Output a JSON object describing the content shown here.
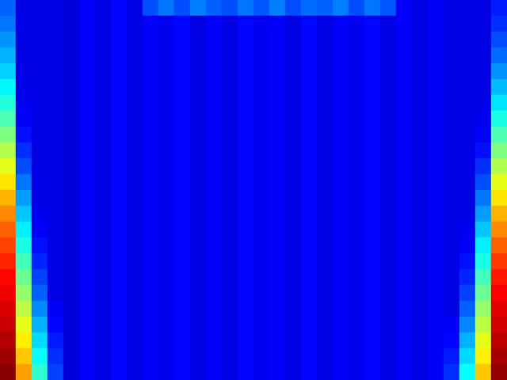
{
  "chart_data": {
    "type": "heatmap",
    "tick_labels": false,
    "color_range": [
      0,
      1
    ],
    "cells": [
      [
        0.22,
        0.1,
        0.1,
        0.1,
        0.09,
        0.12,
        0.1,
        0.13,
        0.1,
        0.2,
        0.24,
        0.2,
        0.25,
        0.22,
        0.2,
        0.24,
        0.21,
        0.25,
        0.2,
        0.23,
        0.22,
        0.25,
        0.2,
        0.24,
        0.21,
        0.12,
        0.1,
        0.12,
        0.1,
        0.1,
        0.1,
        0.15
      ],
      [
        0.24,
        0.1,
        0.1,
        0.1,
        0.09,
        0.12,
        0.1,
        0.13,
        0.1,
        0.12,
        0.11,
        0.13,
        0.1,
        0.12,
        0.1,
        0.13,
        0.11,
        0.12,
        0.1,
        0.13,
        0.1,
        0.12,
        0.11,
        0.13,
        0.1,
        0.12,
        0.1,
        0.12,
        0.1,
        0.1,
        0.1,
        0.17
      ],
      [
        0.27,
        0.1,
        0.1,
        0.1,
        0.09,
        0.12,
        0.1,
        0.13,
        0.1,
        0.12,
        0.11,
        0.13,
        0.1,
        0.12,
        0.1,
        0.13,
        0.11,
        0.12,
        0.1,
        0.13,
        0.1,
        0.12,
        0.11,
        0.13,
        0.1,
        0.12,
        0.1,
        0.12,
        0.1,
        0.1,
        0.1,
        0.2
      ],
      [
        0.3,
        0.1,
        0.1,
        0.1,
        0.09,
        0.12,
        0.1,
        0.13,
        0.1,
        0.12,
        0.11,
        0.13,
        0.1,
        0.12,
        0.1,
        0.13,
        0.11,
        0.12,
        0.1,
        0.13,
        0.1,
        0.12,
        0.11,
        0.13,
        0.1,
        0.12,
        0.1,
        0.12,
        0.1,
        0.1,
        0.1,
        0.23
      ],
      [
        0.33,
        0.1,
        0.1,
        0.1,
        0.09,
        0.12,
        0.1,
        0.13,
        0.1,
        0.12,
        0.11,
        0.13,
        0.1,
        0.12,
        0.1,
        0.13,
        0.11,
        0.12,
        0.1,
        0.13,
        0.1,
        0.12,
        0.11,
        0.13,
        0.1,
        0.12,
        0.1,
        0.12,
        0.1,
        0.1,
        0.1,
        0.27
      ],
      [
        0.37,
        0.1,
        0.1,
        0.1,
        0.09,
        0.12,
        0.1,
        0.13,
        0.1,
        0.12,
        0.11,
        0.13,
        0.1,
        0.12,
        0.1,
        0.13,
        0.11,
        0.12,
        0.1,
        0.13,
        0.1,
        0.12,
        0.11,
        0.13,
        0.1,
        0.12,
        0.1,
        0.12,
        0.1,
        0.1,
        0.1,
        0.31
      ],
      [
        0.41,
        0.11,
        0.1,
        0.1,
        0.09,
        0.12,
        0.1,
        0.13,
        0.1,
        0.12,
        0.11,
        0.13,
        0.1,
        0.12,
        0.1,
        0.13,
        0.11,
        0.12,
        0.1,
        0.13,
        0.1,
        0.12,
        0.11,
        0.13,
        0.1,
        0.12,
        0.1,
        0.12,
        0.1,
        0.1,
        0.1,
        0.35
      ],
      [
        0.45,
        0.12,
        0.1,
        0.1,
        0.09,
        0.12,
        0.1,
        0.13,
        0.1,
        0.12,
        0.11,
        0.13,
        0.1,
        0.12,
        0.1,
        0.13,
        0.11,
        0.12,
        0.1,
        0.13,
        0.1,
        0.12,
        0.11,
        0.13,
        0.1,
        0.12,
        0.1,
        0.12,
        0.1,
        0.1,
        0.11,
        0.4
      ],
      [
        0.5,
        0.14,
        0.1,
        0.1,
        0.09,
        0.12,
        0.1,
        0.13,
        0.1,
        0.12,
        0.11,
        0.13,
        0.1,
        0.12,
        0.1,
        0.13,
        0.11,
        0.12,
        0.1,
        0.13,
        0.1,
        0.12,
        0.11,
        0.13,
        0.1,
        0.12,
        0.1,
        0.12,
        0.1,
        0.1,
        0.12,
        0.45
      ],
      [
        0.55,
        0.17,
        0.1,
        0.1,
        0.09,
        0.12,
        0.1,
        0.13,
        0.1,
        0.12,
        0.11,
        0.13,
        0.1,
        0.12,
        0.1,
        0.13,
        0.11,
        0.12,
        0.1,
        0.13,
        0.1,
        0.12,
        0.11,
        0.13,
        0.1,
        0.12,
        0.1,
        0.12,
        0.1,
        0.1,
        0.14,
        0.5
      ],
      [
        0.6,
        0.2,
        0.1,
        0.1,
        0.09,
        0.12,
        0.1,
        0.13,
        0.1,
        0.12,
        0.11,
        0.13,
        0.1,
        0.12,
        0.1,
        0.13,
        0.11,
        0.12,
        0.1,
        0.13,
        0.1,
        0.12,
        0.11,
        0.13,
        0.1,
        0.12,
        0.1,
        0.12,
        0.1,
        0.1,
        0.17,
        0.55
      ],
      [
        0.65,
        0.24,
        0.1,
        0.1,
        0.09,
        0.12,
        0.1,
        0.13,
        0.1,
        0.12,
        0.11,
        0.13,
        0.1,
        0.12,
        0.1,
        0.13,
        0.11,
        0.12,
        0.1,
        0.13,
        0.1,
        0.12,
        0.11,
        0.13,
        0.1,
        0.12,
        0.1,
        0.12,
        0.1,
        0.1,
        0.2,
        0.6
      ],
      [
        0.7,
        0.28,
        0.1,
        0.1,
        0.09,
        0.12,
        0.1,
        0.13,
        0.1,
        0.12,
        0.11,
        0.13,
        0.1,
        0.12,
        0.1,
        0.13,
        0.11,
        0.12,
        0.1,
        0.13,
        0.1,
        0.12,
        0.11,
        0.13,
        0.1,
        0.12,
        0.1,
        0.12,
        0.1,
        0.1,
        0.24,
        0.65
      ],
      [
        0.74,
        0.32,
        0.11,
        0.1,
        0.09,
        0.12,
        0.1,
        0.13,
        0.1,
        0.12,
        0.11,
        0.13,
        0.1,
        0.12,
        0.1,
        0.13,
        0.11,
        0.12,
        0.1,
        0.13,
        0.1,
        0.12,
        0.11,
        0.13,
        0.1,
        0.12,
        0.1,
        0.12,
        0.1,
        0.1,
        0.28,
        0.7
      ],
      [
        0.78,
        0.36,
        0.12,
        0.1,
        0.09,
        0.12,
        0.1,
        0.13,
        0.1,
        0.12,
        0.11,
        0.13,
        0.1,
        0.12,
        0.1,
        0.13,
        0.11,
        0.12,
        0.1,
        0.13,
        0.1,
        0.12,
        0.11,
        0.13,
        0.1,
        0.12,
        0.1,
        0.12,
        0.1,
        0.11,
        0.32,
        0.74
      ],
      [
        0.81,
        0.4,
        0.14,
        0.1,
        0.09,
        0.12,
        0.1,
        0.13,
        0.1,
        0.12,
        0.11,
        0.13,
        0.1,
        0.12,
        0.1,
        0.13,
        0.11,
        0.12,
        0.1,
        0.13,
        0.1,
        0.12,
        0.11,
        0.13,
        0.1,
        0.12,
        0.1,
        0.12,
        0.1,
        0.12,
        0.36,
        0.78
      ],
      [
        0.84,
        0.44,
        0.16,
        0.1,
        0.09,
        0.12,
        0.1,
        0.13,
        0.1,
        0.12,
        0.11,
        0.13,
        0.1,
        0.12,
        0.1,
        0.13,
        0.11,
        0.12,
        0.1,
        0.13,
        0.1,
        0.12,
        0.11,
        0.13,
        0.1,
        0.12,
        0.1,
        0.12,
        0.1,
        0.14,
        0.4,
        0.82
      ],
      [
        0.87,
        0.48,
        0.19,
        0.1,
        0.09,
        0.12,
        0.1,
        0.13,
        0.1,
        0.12,
        0.11,
        0.13,
        0.1,
        0.12,
        0.1,
        0.13,
        0.11,
        0.12,
        0.1,
        0.13,
        0.1,
        0.12,
        0.11,
        0.13,
        0.1,
        0.12,
        0.1,
        0.12,
        0.1,
        0.16,
        0.44,
        0.85
      ],
      [
        0.89,
        0.52,
        0.22,
        0.1,
        0.09,
        0.12,
        0.1,
        0.13,
        0.1,
        0.12,
        0.11,
        0.13,
        0.1,
        0.12,
        0.1,
        0.13,
        0.11,
        0.12,
        0.1,
        0.13,
        0.1,
        0.12,
        0.11,
        0.13,
        0.1,
        0.12,
        0.1,
        0.12,
        0.1,
        0.19,
        0.48,
        0.88
      ],
      [
        0.91,
        0.56,
        0.26,
        0.12,
        0.09,
        0.12,
        0.1,
        0.13,
        0.1,
        0.12,
        0.11,
        0.13,
        0.1,
        0.12,
        0.1,
        0.13,
        0.11,
        0.12,
        0.1,
        0.13,
        0.1,
        0.12,
        0.11,
        0.13,
        0.1,
        0.12,
        0.1,
        0.12,
        0.1,
        0.22,
        0.52,
        0.9
      ],
      [
        0.93,
        0.6,
        0.3,
        0.13,
        0.09,
        0.12,
        0.1,
        0.13,
        0.1,
        0.12,
        0.11,
        0.13,
        0.1,
        0.12,
        0.1,
        0.13,
        0.11,
        0.12,
        0.1,
        0.13,
        0.1,
        0.12,
        0.11,
        0.13,
        0.1,
        0.12,
        0.1,
        0.12,
        0.12,
        0.26,
        0.56,
        0.92
      ],
      [
        0.95,
        0.64,
        0.34,
        0.15,
        0.09,
        0.12,
        0.1,
        0.13,
        0.1,
        0.12,
        0.11,
        0.13,
        0.1,
        0.12,
        0.1,
        0.13,
        0.11,
        0.12,
        0.1,
        0.13,
        0.1,
        0.12,
        0.11,
        0.13,
        0.1,
        0.12,
        0.1,
        0.12,
        0.13,
        0.3,
        0.6,
        0.94
      ],
      [
        0.97,
        0.68,
        0.38,
        0.17,
        0.09,
        0.12,
        0.1,
        0.13,
        0.1,
        0.12,
        0.11,
        0.13,
        0.1,
        0.12,
        0.1,
        0.13,
        0.11,
        0.12,
        0.1,
        0.13,
        0.1,
        0.12,
        0.11,
        0.13,
        0.1,
        0.12,
        0.1,
        0.12,
        0.15,
        0.34,
        0.64,
        0.96
      ],
      [
        0.99,
        0.72,
        0.42,
        0.19,
        0.09,
        0.12,
        0.1,
        0.13,
        0.1,
        0.12,
        0.11,
        0.13,
        0.1,
        0.12,
        0.1,
        0.13,
        0.11,
        0.12,
        0.1,
        0.13,
        0.1,
        0.12,
        0.11,
        0.13,
        0.1,
        0.12,
        0.1,
        0.12,
        0.17,
        0.38,
        0.68,
        0.98
      ]
    ]
  }
}
